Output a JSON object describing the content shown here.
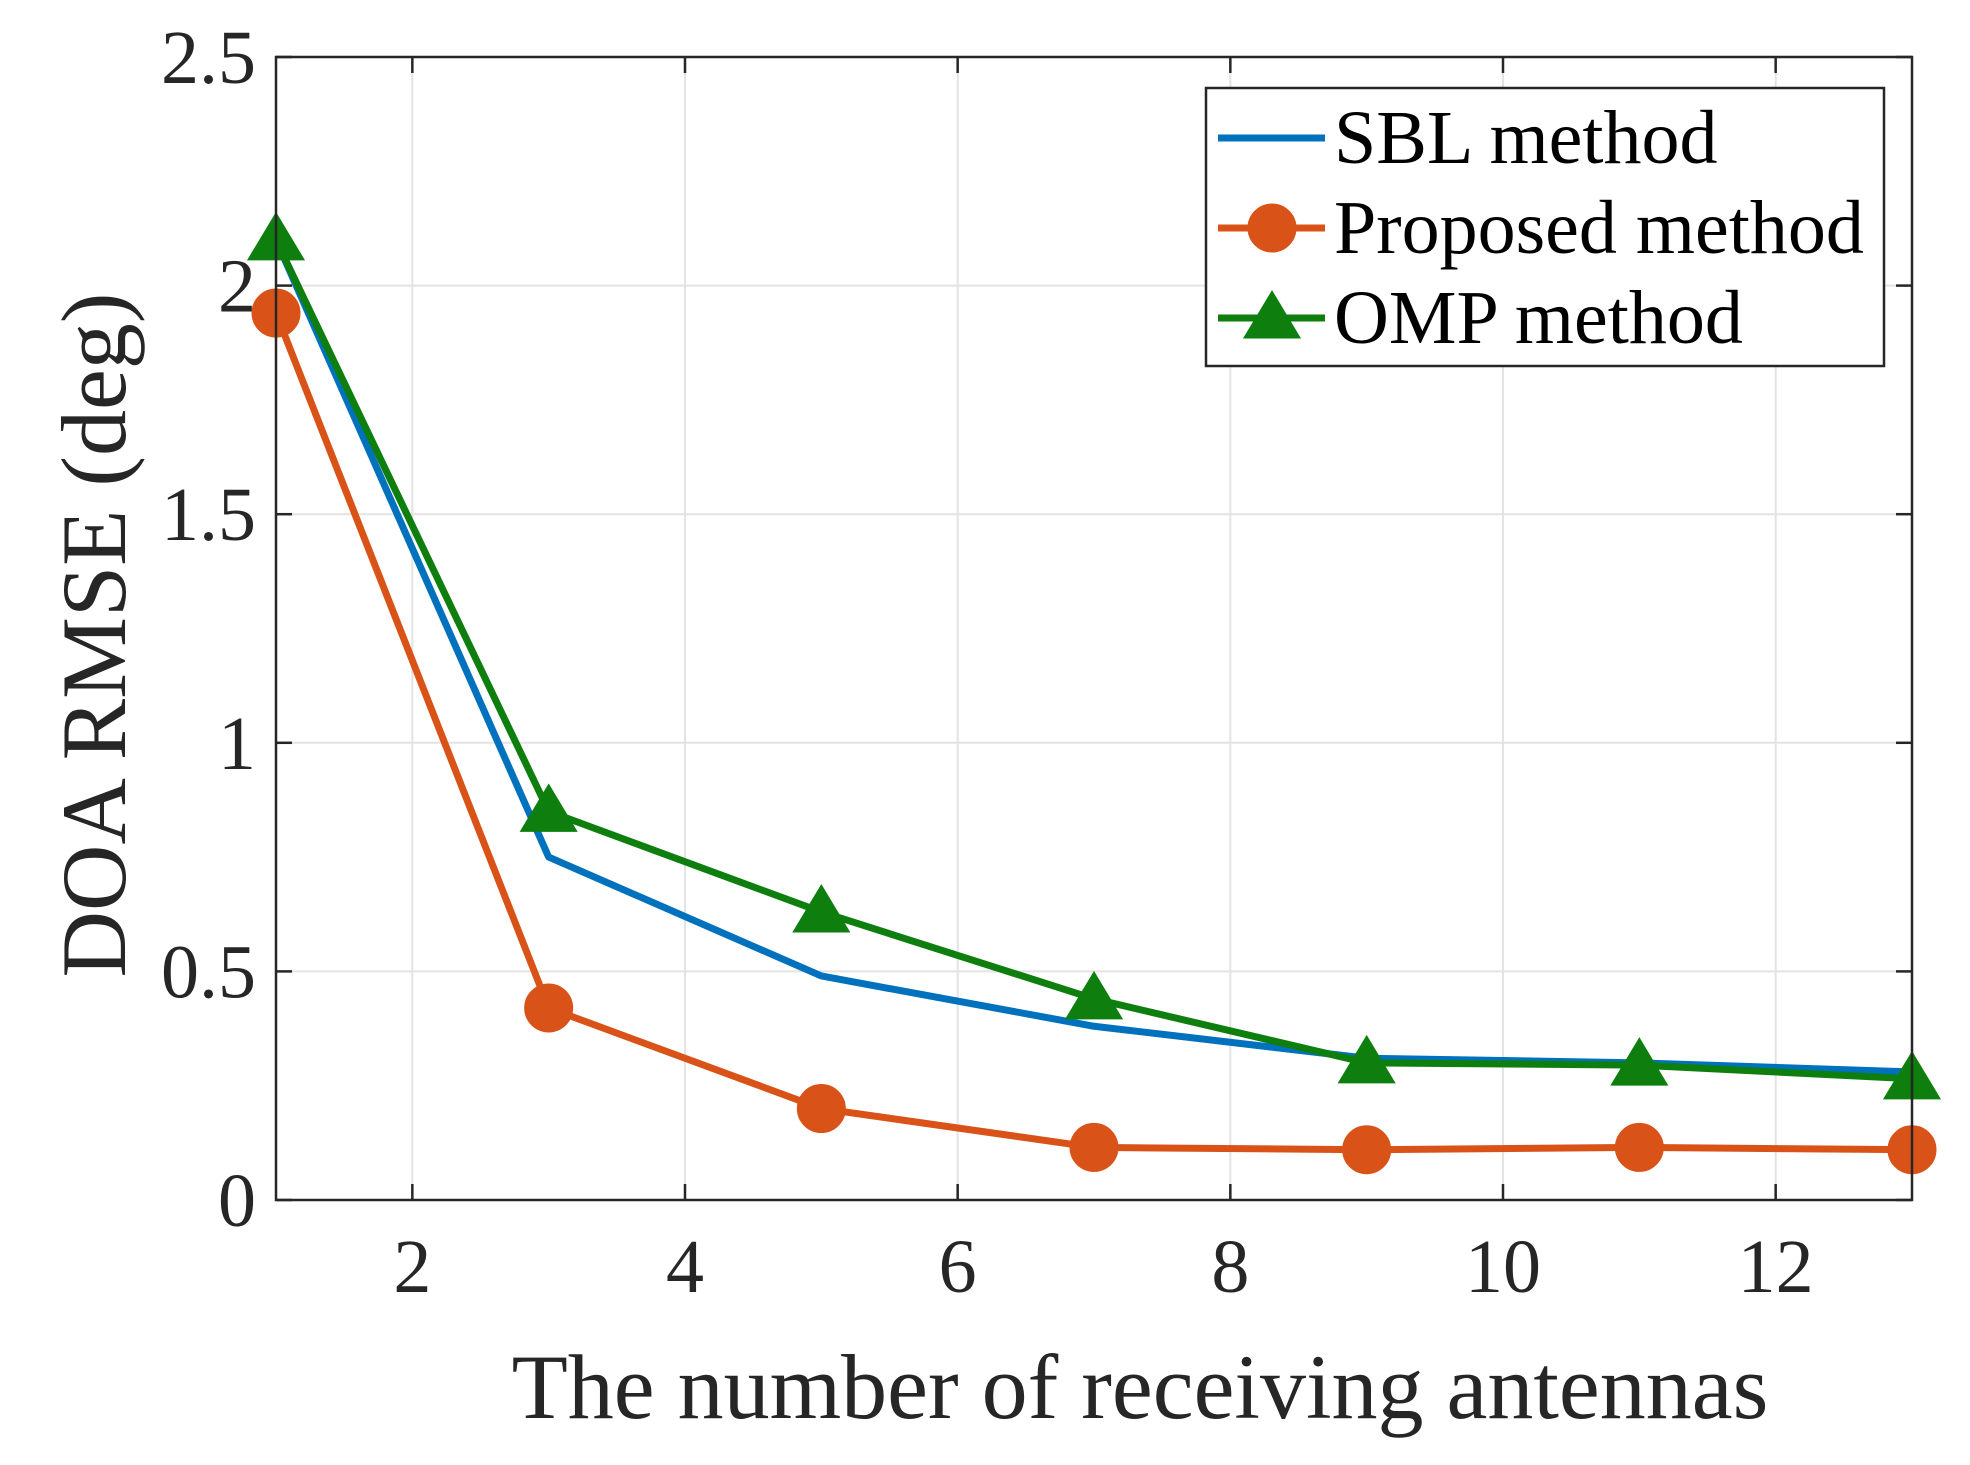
{
  "chart_data": {
    "type": "line",
    "title": "",
    "xlabel": "The number of receiving antennas",
    "ylabel": "DOA RMSE (deg)",
    "xlim": [
      1,
      13
    ],
    "ylim": [
      0,
      2.5
    ],
    "xticks": [
      2,
      4,
      6,
      8,
      10,
      12
    ],
    "yticks": [
      0,
      0.5,
      1,
      1.5,
      2,
      2.5
    ],
    "xtick_labels": [
      "2",
      "4",
      "6",
      "8",
      "10",
      "12"
    ],
    "ytick_labels": [
      "0",
      "0.5",
      "1",
      "1.5",
      "2",
      "2.5"
    ],
    "grid": true,
    "legend_position": "top-right",
    "x": [
      1,
      3,
      5,
      7,
      9,
      11,
      13
    ],
    "series": [
      {
        "name": "SBL method",
        "color": "#0072BD",
        "marker": "none",
        "values": [
          2.1,
          0.75,
          0.49,
          0.38,
          0.31,
          0.3,
          0.28
        ]
      },
      {
        "name": "Proposed method",
        "color": "#D95319",
        "marker": "circle",
        "values": [
          1.94,
          0.42,
          0.2,
          0.115,
          0.11,
          0.115,
          0.11
        ]
      },
      {
        "name": "OMP method",
        "color": "#0E7F0E",
        "marker": "triangle",
        "values": [
          2.1,
          0.85,
          0.63,
          0.44,
          0.3,
          0.295,
          0.265
        ]
      }
    ]
  }
}
